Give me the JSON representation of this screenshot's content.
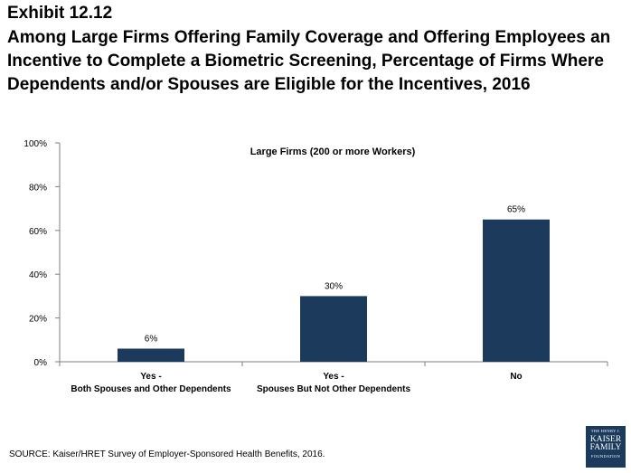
{
  "exhibit": "Exhibit 12.12",
  "title": "Among Large Firms Offering Family Coverage and Offering Employees an Incentive to Complete a Biometric Screening, Percentage of Firms Where Dependents and/or Spouses are Eligible for the Incentives, 2016",
  "source": "SOURCE: Kaiser/HRET Survey of Employer-Sponsored Health Benefits, 2016.",
  "logo": {
    "line1": "THE HENRY J.",
    "line2": "KAISER",
    "line3": "FAMILY",
    "line4": "FOUNDATION"
  },
  "colors": {
    "bar": "#1b3a5c",
    "axis": "#7f7f7f"
  },
  "chart_data": {
    "type": "bar",
    "title": "Large Firms (200 or more Workers)",
    "categories": [
      [
        "Yes -",
        "Both Spouses and Other Dependents"
      ],
      [
        "Yes -",
        "Spouses But Not Other Dependents"
      ],
      [
        "No"
      ]
    ],
    "values": [
      6,
      30,
      65
    ],
    "data_labels": [
      "6%",
      "30%",
      "65%"
    ],
    "yticks": [
      0,
      20,
      40,
      60,
      80,
      100
    ],
    "ytick_labels": [
      "0%",
      "20%",
      "40%",
      "60%",
      "80%",
      "100%"
    ],
    "ylim": [
      0,
      100
    ],
    "grid": false,
    "legend": "none"
  }
}
